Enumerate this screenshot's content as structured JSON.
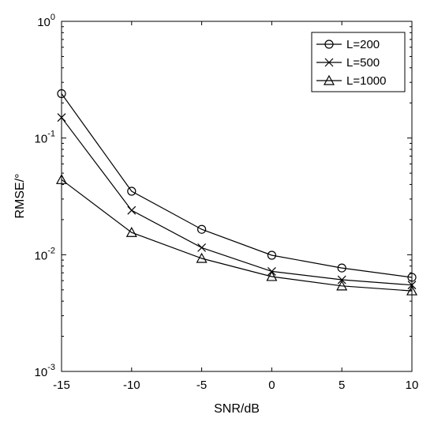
{
  "chart_data": {
    "type": "line",
    "title": "",
    "xlabel": "SNR/dB",
    "ylabel": "RMSE/°",
    "x": [
      -15,
      -10,
      -5,
      0,
      5,
      10
    ],
    "xlim": [
      -15,
      10
    ],
    "xticks": [
      "-15",
      "-10",
      "-5",
      "0",
      "5",
      "10"
    ],
    "ylim": [
      0.001,
      1
    ],
    "yscale": "log",
    "yticks": [
      {
        "base": "10",
        "exp": "0"
      },
      {
        "base": "10",
        "exp": "-1"
      },
      {
        "base": "10",
        "exp": "-2"
      },
      {
        "base": "10",
        "exp": "-3"
      }
    ],
    "grid": false,
    "legend_position": "top-right",
    "series": [
      {
        "name": "L=200",
        "marker": "circle",
        "values": [
          0.24,
          0.035,
          0.0165,
          0.0099,
          0.0077,
          0.0064
        ]
      },
      {
        "name": "L=500",
        "marker": "x",
        "values": [
          0.15,
          0.024,
          0.0115,
          0.0072,
          0.0061,
          0.0055
        ]
      },
      {
        "name": "L=1000",
        "marker": "triangle",
        "values": [
          0.044,
          0.0155,
          0.0093,
          0.0065,
          0.0054,
          0.0049
        ]
      }
    ],
    "colors": {
      "line": "#000000",
      "background": "#ffffff"
    }
  }
}
